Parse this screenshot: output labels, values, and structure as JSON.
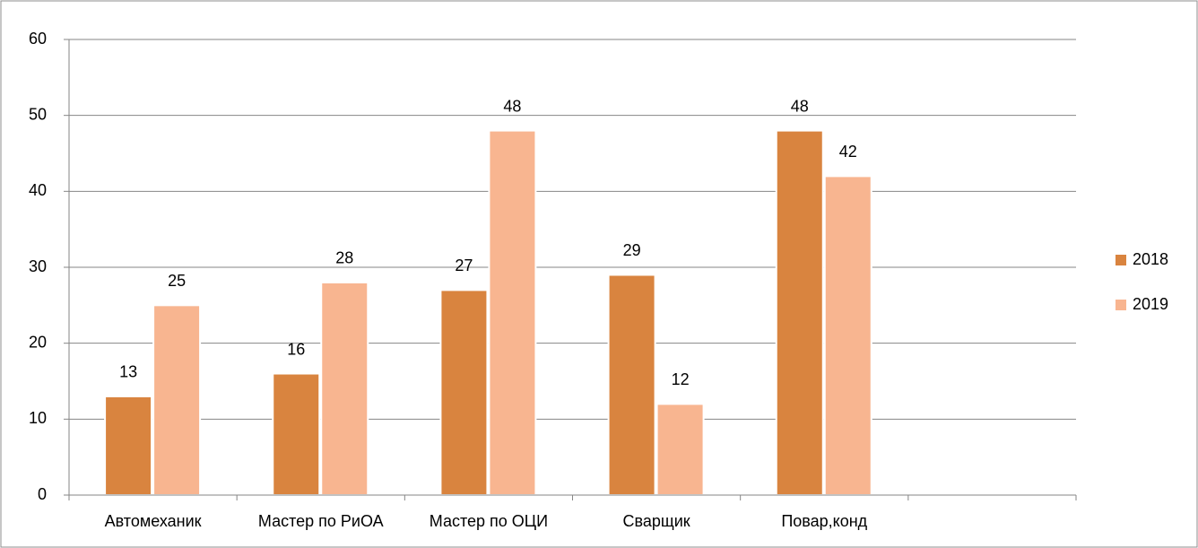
{
  "chart_data": {
    "type": "bar",
    "categories": [
      "Автомеханик",
      "Мастер по РиОА",
      "Мастер по ОЦИ",
      "Сварщик",
      "Повар,конд",
      null
    ],
    "series": [
      {
        "name": "2018",
        "color": "#d9843f",
        "values": [
          13,
          16,
          27,
          29,
          48,
          null
        ]
      },
      {
        "name": "2019",
        "color": "#f8b590",
        "values": [
          25,
          28,
          48,
          12,
          42,
          null
        ]
      }
    ],
    "ylim": [
      0,
      60
    ],
    "yticks": [
      0,
      10,
      20,
      30,
      40,
      50,
      60
    ],
    "grid": true,
    "legend": "right"
  }
}
